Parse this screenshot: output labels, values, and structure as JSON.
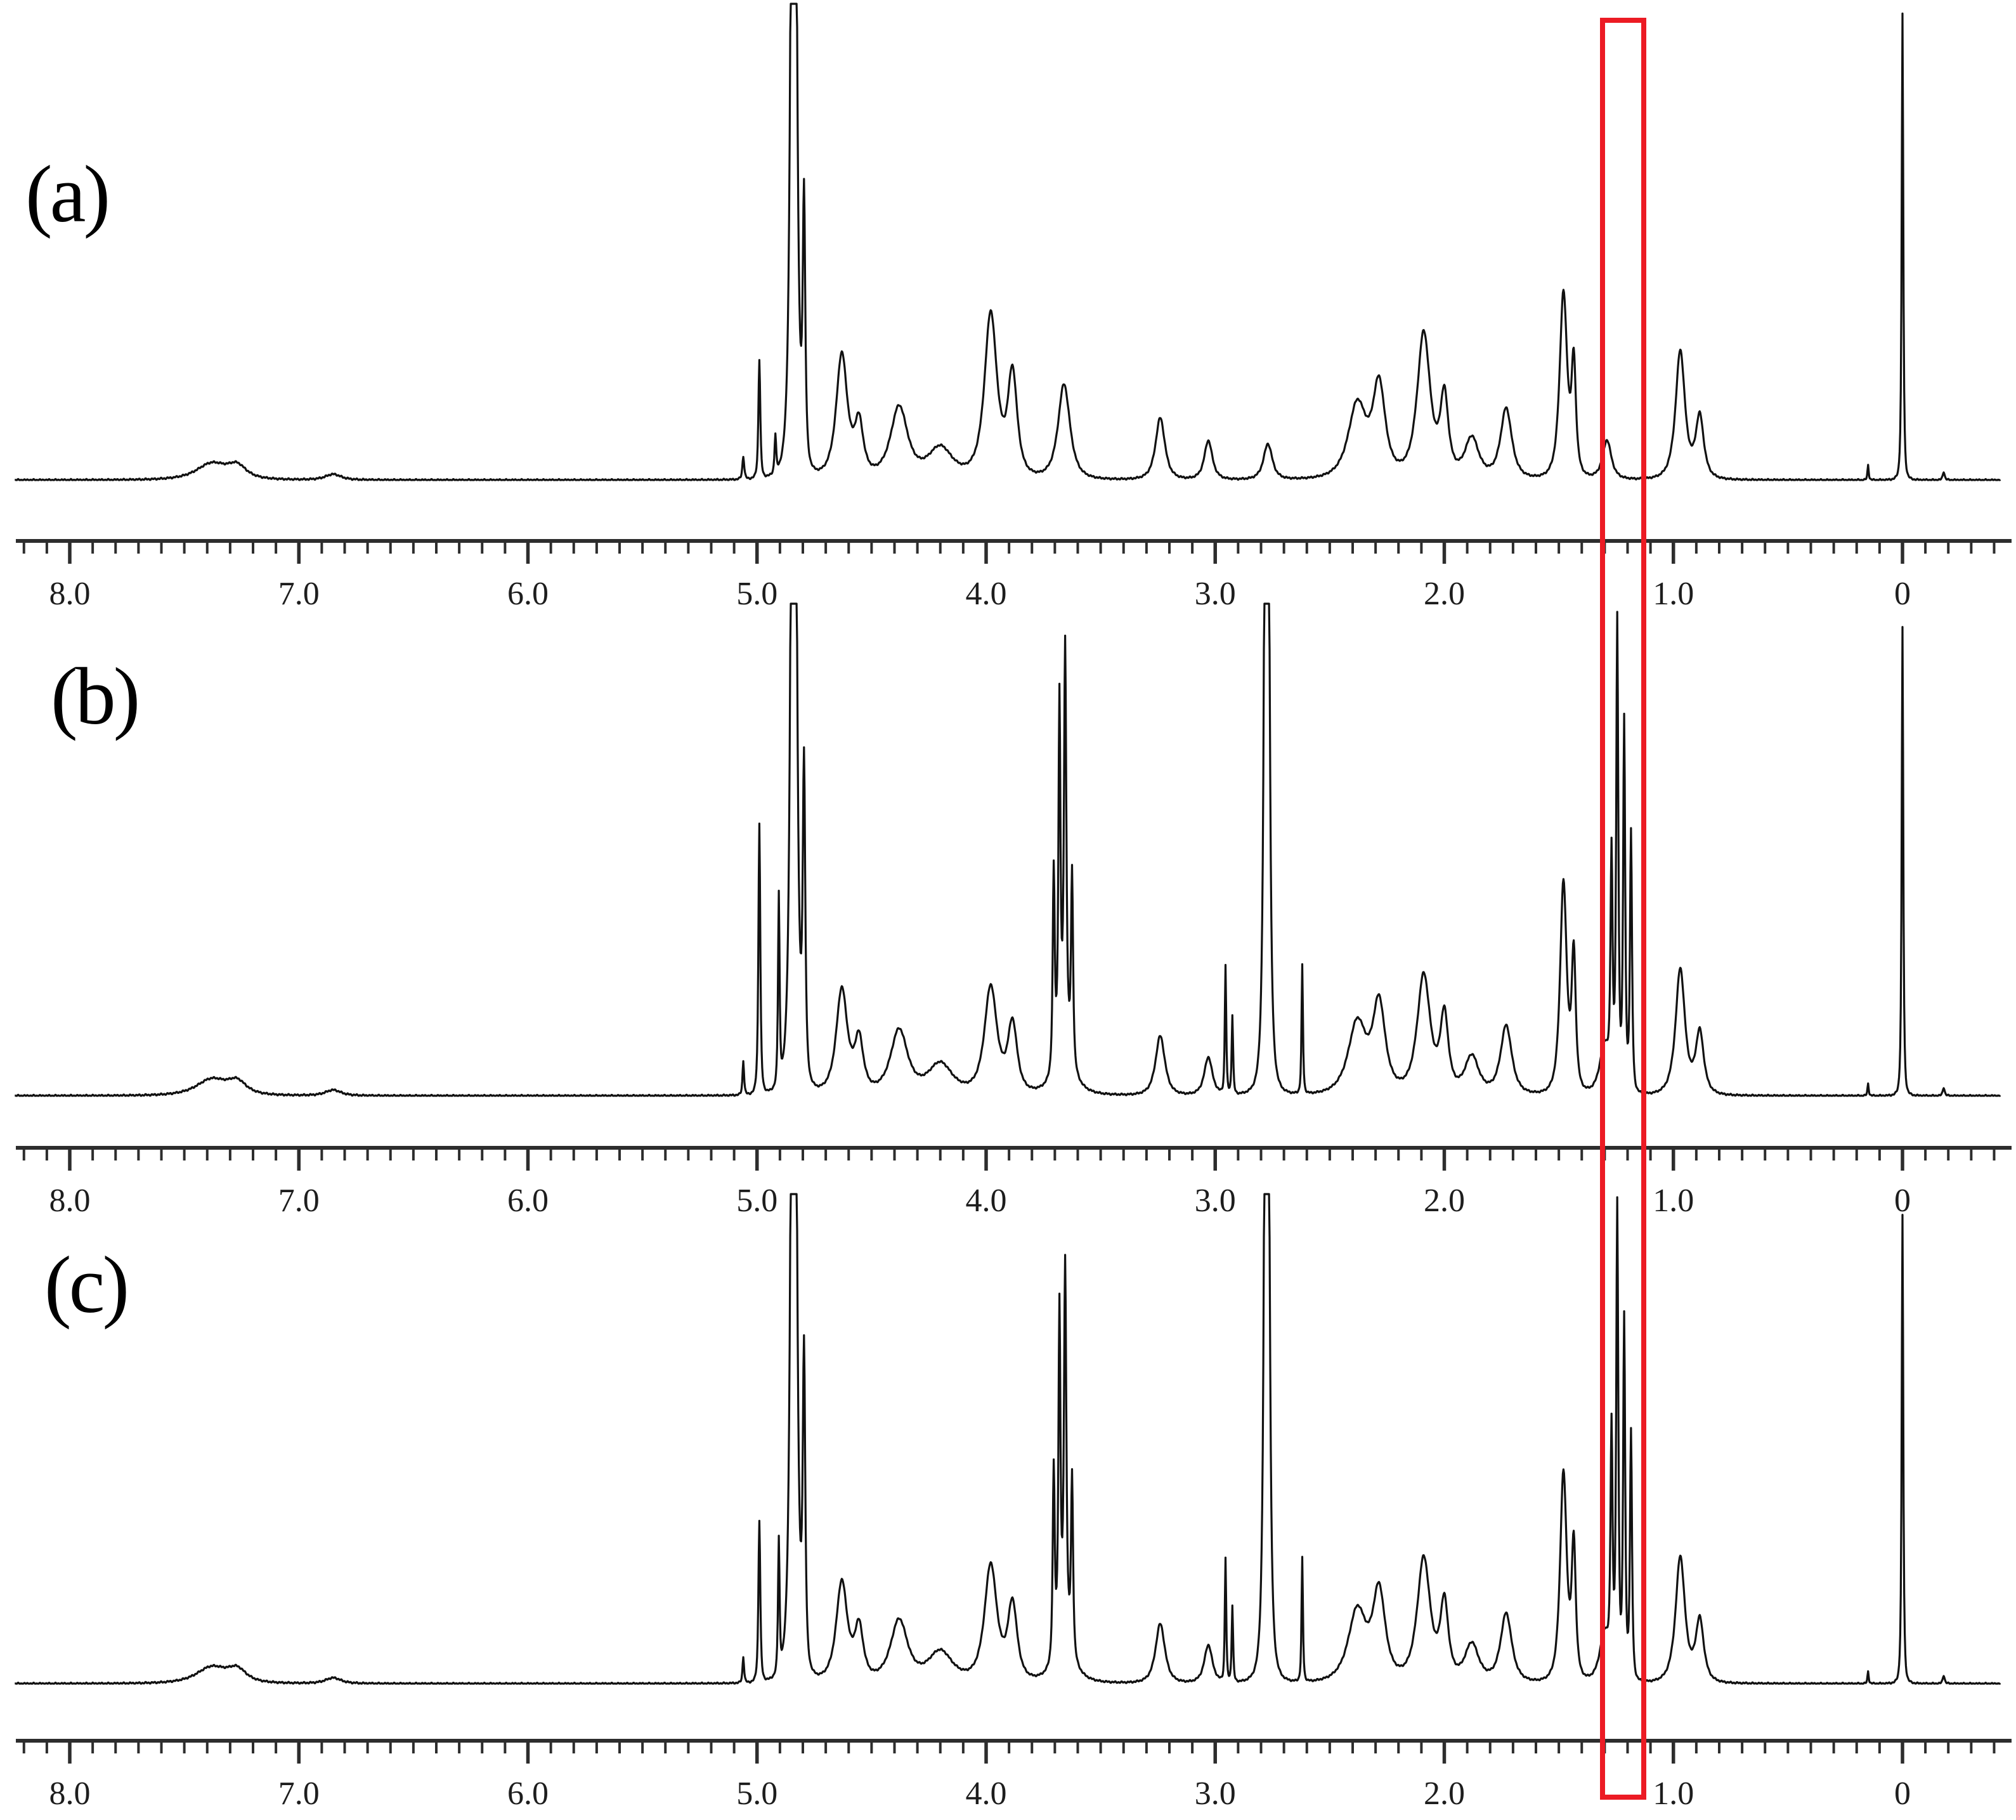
{
  "figure": {
    "background_color": "#ffffff",
    "trace_color": "#111111",
    "axis_color": "#2d2d2d",
    "tick_label_color": "#1d1d1d",
    "highlight_color": "#ec1b24"
  },
  "annotations": {
    "highlight_box": {
      "ppm_from": 1.31,
      "ppm_to": 1.13,
      "color": "#ec1b24",
      "spans_all_panels": true
    }
  },
  "chart_data": {
    "type": "line",
    "kind": "stacked 1H NMR spectra",
    "title": "",
    "xlabel": "",
    "ylabel": "",
    "x_descending": true,
    "x_range": [
      8.24,
      -0.43
    ],
    "axis": {
      "major_tick_values": [
        8,
        7,
        6,
        5,
        4,
        3,
        2,
        1,
        0
      ],
      "major_tick_labels": [
        "8.0",
        "7.0",
        "6.0",
        "5.0",
        "4.0",
        "3.0",
        "2.0",
        "1.0",
        "0"
      ],
      "minor_tick_step": 0.1
    },
    "peak_format": "[ppm_center, relative_intensity (1.0 = full panel height, >1 = truncated), halfwidth_ppm]",
    "spectra": [
      {
        "label": "(a)",
        "peaks": [
          [
            7.38,
            0.034,
            0.1
          ],
          [
            7.27,
            0.026,
            0.06
          ],
          [
            6.85,
            0.012,
            0.05
          ],
          [
            5.06,
            0.048,
            0.006
          ],
          [
            4.99,
            0.25,
            0.006
          ],
          [
            4.92,
            0.08,
            0.005
          ],
          [
            4.84,
            3.5,
            0.012
          ],
          [
            4.795,
            0.55,
            0.008
          ],
          [
            4.63,
            0.26,
            0.036
          ],
          [
            4.555,
            0.11,
            0.028
          ],
          [
            4.38,
            0.15,
            0.055
          ],
          [
            4.2,
            0.065,
            0.08
          ],
          [
            3.98,
            0.345,
            0.04
          ],
          [
            3.885,
            0.215,
            0.03
          ],
          [
            3.66,
            0.2,
            0.038
          ],
          [
            3.24,
            0.13,
            0.03
          ],
          [
            3.03,
            0.082,
            0.026
          ],
          [
            2.77,
            0.075,
            0.028
          ],
          [
            2.38,
            0.155,
            0.058
          ],
          [
            2.285,
            0.19,
            0.04
          ],
          [
            2.09,
            0.305,
            0.042
          ],
          [
            2.0,
            0.165,
            0.026
          ],
          [
            1.88,
            0.085,
            0.045
          ],
          [
            1.73,
            0.148,
            0.036
          ],
          [
            1.48,
            0.39,
            0.024
          ],
          [
            1.435,
            0.23,
            0.014
          ],
          [
            1.29,
            0.082,
            0.028
          ],
          [
            0.97,
            0.27,
            0.03
          ],
          [
            0.885,
            0.13,
            0.026
          ],
          [
            0.15,
            0.032,
            0.004
          ],
          [
            0.0,
            0.98,
            0.005
          ],
          [
            -0.18,
            0.018,
            0.006
          ]
        ]
      },
      {
        "label": "(b)",
        "peaks": [
          [
            7.38,
            0.034,
            0.1
          ],
          [
            7.27,
            0.026,
            0.06
          ],
          [
            6.85,
            0.012,
            0.05
          ],
          [
            5.06,
            0.072,
            0.005
          ],
          [
            4.99,
            0.57,
            0.006
          ],
          [
            4.905,
            0.4,
            0.005
          ],
          [
            4.84,
            3.5,
            0.012
          ],
          [
            4.795,
            0.65,
            0.008
          ],
          [
            4.63,
            0.22,
            0.036
          ],
          [
            4.555,
            0.11,
            0.028
          ],
          [
            4.38,
            0.135,
            0.055
          ],
          [
            4.2,
            0.065,
            0.08
          ],
          [
            3.98,
            0.225,
            0.04
          ],
          [
            3.885,
            0.145,
            0.03
          ],
          [
            3.705,
            0.42,
            0.0065
          ],
          [
            3.68,
            0.74,
            0.0065
          ],
          [
            3.655,
            0.84,
            0.0075
          ],
          [
            3.625,
            0.4,
            0.0065
          ],
          [
            3.66,
            0.105,
            0.055
          ],
          [
            3.24,
            0.125,
            0.03
          ],
          [
            3.03,
            0.08,
            0.026
          ],
          [
            2.955,
            0.27,
            0.0045
          ],
          [
            2.925,
            0.165,
            0.0045
          ],
          [
            2.775,
            3.5,
            0.01
          ],
          [
            2.62,
            0.27,
            0.0045
          ],
          [
            2.38,
            0.15,
            0.058
          ],
          [
            2.285,
            0.185,
            0.04
          ],
          [
            2.09,
            0.25,
            0.042
          ],
          [
            2.0,
            0.16,
            0.026
          ],
          [
            1.88,
            0.08,
            0.045
          ],
          [
            1.73,
            0.145,
            0.036
          ],
          [
            1.48,
            0.445,
            0.021
          ],
          [
            1.435,
            0.285,
            0.013
          ],
          [
            1.3,
            0.105,
            0.032
          ],
          [
            1.27,
            0.475,
            0.0065
          ],
          [
            1.245,
            0.98,
            0.0065
          ],
          [
            1.215,
            0.775,
            0.0065
          ],
          [
            1.185,
            0.545,
            0.0065
          ],
          [
            0.97,
            0.265,
            0.03
          ],
          [
            0.885,
            0.13,
            0.026
          ],
          [
            0.15,
            0.026,
            0.004
          ],
          [
            0.0,
            0.985,
            0.005
          ],
          [
            -0.18,
            0.018,
            0.006
          ]
        ]
      },
      {
        "label": "(c)",
        "peaks": [
          [
            7.38,
            0.034,
            0.1
          ],
          [
            7.27,
            0.026,
            0.06
          ],
          [
            6.85,
            0.012,
            0.05
          ],
          [
            5.06,
            0.055,
            0.005
          ],
          [
            4.99,
            0.34,
            0.006
          ],
          [
            4.905,
            0.28,
            0.005
          ],
          [
            4.84,
            3.5,
            0.012
          ],
          [
            4.795,
            0.65,
            0.008
          ],
          [
            4.63,
            0.21,
            0.036
          ],
          [
            4.555,
            0.11,
            0.028
          ],
          [
            4.38,
            0.13,
            0.055
          ],
          [
            4.2,
            0.065,
            0.08
          ],
          [
            3.98,
            0.245,
            0.04
          ],
          [
            3.885,
            0.16,
            0.03
          ],
          [
            3.705,
            0.4,
            0.0065
          ],
          [
            3.68,
            0.7,
            0.0065
          ],
          [
            3.655,
            0.78,
            0.0075
          ],
          [
            3.625,
            0.37,
            0.0065
          ],
          [
            3.66,
            0.1,
            0.055
          ],
          [
            3.24,
            0.125,
            0.03
          ],
          [
            3.03,
            0.08,
            0.026
          ],
          [
            2.955,
            0.26,
            0.0045
          ],
          [
            2.925,
            0.16,
            0.0045
          ],
          [
            2.775,
            3.5,
            0.01
          ],
          [
            2.62,
            0.26,
            0.0045
          ],
          [
            2.38,
            0.15,
            0.058
          ],
          [
            2.285,
            0.185,
            0.04
          ],
          [
            2.09,
            0.26,
            0.042
          ],
          [
            2.0,
            0.16,
            0.026
          ],
          [
            1.88,
            0.08,
            0.045
          ],
          [
            1.73,
            0.145,
            0.036
          ],
          [
            1.48,
            0.44,
            0.021
          ],
          [
            1.435,
            0.28,
            0.013
          ],
          [
            1.3,
            0.105,
            0.032
          ],
          [
            1.27,
            0.5,
            0.0065
          ],
          [
            1.245,
            0.985,
            0.0065
          ],
          [
            1.215,
            0.755,
            0.0065
          ],
          [
            1.185,
            0.52,
            0.0065
          ],
          [
            0.97,
            0.265,
            0.03
          ],
          [
            0.885,
            0.13,
            0.026
          ],
          [
            0.15,
            0.026,
            0.004
          ],
          [
            0.0,
            0.985,
            0.005
          ],
          [
            -0.18,
            0.018,
            0.006
          ]
        ]
      }
    ]
  }
}
